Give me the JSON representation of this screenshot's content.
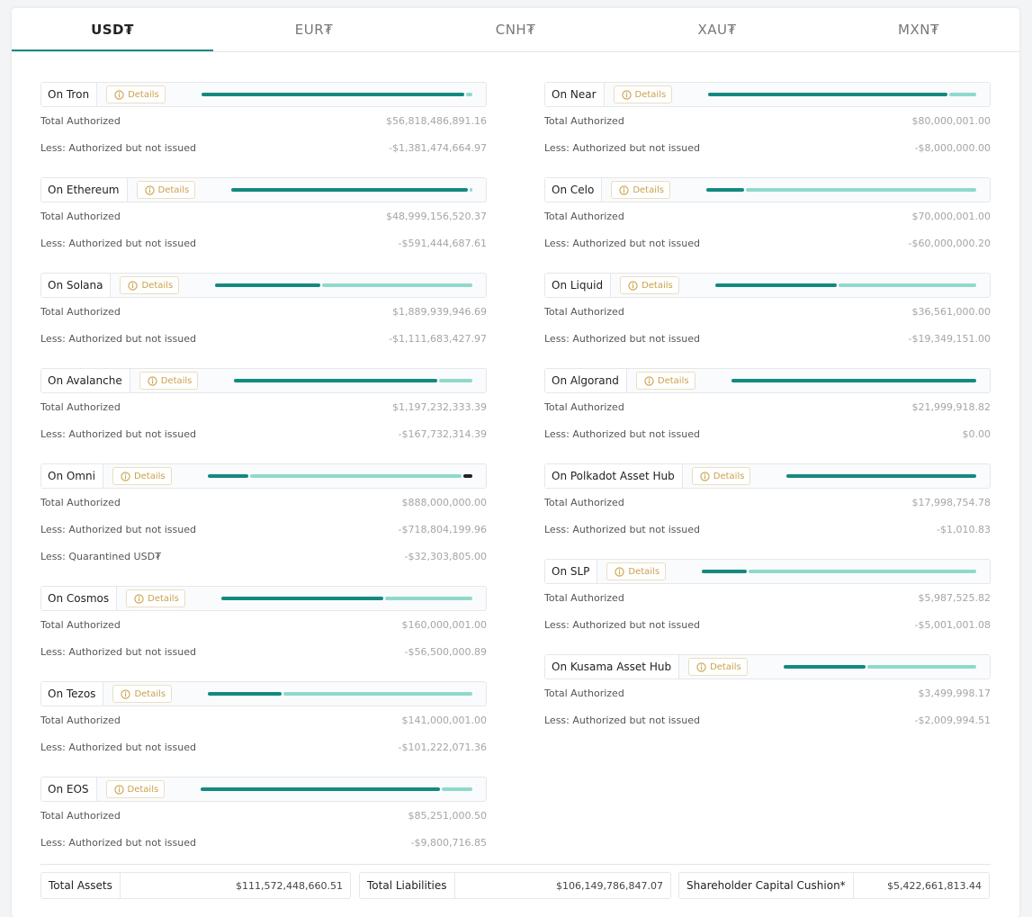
{
  "tabs": [
    "USD₮",
    "EUR₮",
    "CNH₮",
    "XAU₮",
    "MXN₮"
  ],
  "details_label": "Details",
  "left": [
    {
      "name": "On Tron",
      "rows": [
        [
          "Total Authorized",
          "$56,818,486,891.16"
        ],
        [
          "Less: Authorized but not issued",
          "-$1,381,474,664.97"
        ]
      ]
    },
    {
      "name": "On Ethereum",
      "rows": [
        [
          "Total Authorized",
          "$48,999,156,520.37"
        ],
        [
          "Less: Authorized but not issued",
          "-$591,444,687.61"
        ]
      ]
    },
    {
      "name": "On Solana",
      "rows": [
        [
          "Total Authorized",
          "$1,889,939,946.69"
        ],
        [
          "Less: Authorized but not issued",
          "-$1,111,683,427.97"
        ]
      ]
    },
    {
      "name": "On Avalanche",
      "rows": [
        [
          "Total Authorized",
          "$1,197,232,333.39"
        ],
        [
          "Less: Authorized but not issued",
          "-$167,732,314.39"
        ]
      ]
    },
    {
      "name": "On Omni",
      "rows": [
        [
          "Total Authorized",
          "$888,000,000.00"
        ],
        [
          "Less: Authorized but not issued",
          "-$718,804,199.96"
        ],
        [
          "Less: Quarantined USD₮",
          "-$32,303,805.00"
        ]
      ]
    },
    {
      "name": "On Cosmos",
      "rows": [
        [
          "Total Authorized",
          "$160,000,001.00"
        ],
        [
          "Less: Authorized but not issued",
          "-$56,500,000.89"
        ]
      ]
    },
    {
      "name": "On Tezos",
      "rows": [
        [
          "Total Authorized",
          "$141,000,001.00"
        ],
        [
          "Less: Authorized but not issued",
          "-$101,222,071.36"
        ]
      ]
    },
    {
      "name": "On EOS",
      "rows": [
        [
          "Total Authorized",
          "$85,251,000.50"
        ],
        [
          "Less: Authorized but not issued",
          "-$9,800,716.85"
        ]
      ]
    }
  ],
  "right": [
    {
      "name": "On Near",
      "rows": [
        [
          "Total Authorized",
          "$80,000,001.00"
        ],
        [
          "Less: Authorized but not issued",
          "-$8,000,000.00"
        ]
      ]
    },
    {
      "name": "On Celo",
      "rows": [
        [
          "Total Authorized",
          "$70,000,001.00"
        ],
        [
          "Less: Authorized but not issued",
          "-$60,000,000.20"
        ]
      ]
    },
    {
      "name": "On Liquid",
      "rows": [
        [
          "Total Authorized",
          "$36,561,000.00"
        ],
        [
          "Less: Authorized but not issued",
          "-$19,349,151.00"
        ]
      ]
    },
    {
      "name": "On Algorand",
      "rows": [
        [
          "Total Authorized",
          "$21,999,918.82"
        ],
        [
          "Less: Authorized but not issued",
          "$0.00"
        ]
      ]
    },
    {
      "name": "On Polkadot Asset Hub",
      "rows": [
        [
          "Total Authorized",
          "$17,998,754.78"
        ],
        [
          "Less: Authorized but not issued",
          "-$1,010.83"
        ]
      ]
    },
    {
      "name": "On SLP",
      "rows": [
        [
          "Total Authorized",
          "$5,987,525.82"
        ],
        [
          "Less: Authorized but not issued",
          "-$5,001,001.08"
        ]
      ]
    },
    {
      "name": "On Kusama Asset Hub",
      "rows": [
        [
          "Total Authorized",
          "$3,499,998.17"
        ],
        [
          "Less: Authorized but not issued",
          "-$2,009,994.51"
        ]
      ]
    }
  ],
  "summary": [
    [
      "Total Assets",
      "$111,572,448,660.51"
    ],
    [
      "Total Liabilities",
      "$106,149,786,847.07"
    ],
    [
      "Shareholder Capital Cushion*",
      "$5,422,661,813.44"
    ]
  ]
}
